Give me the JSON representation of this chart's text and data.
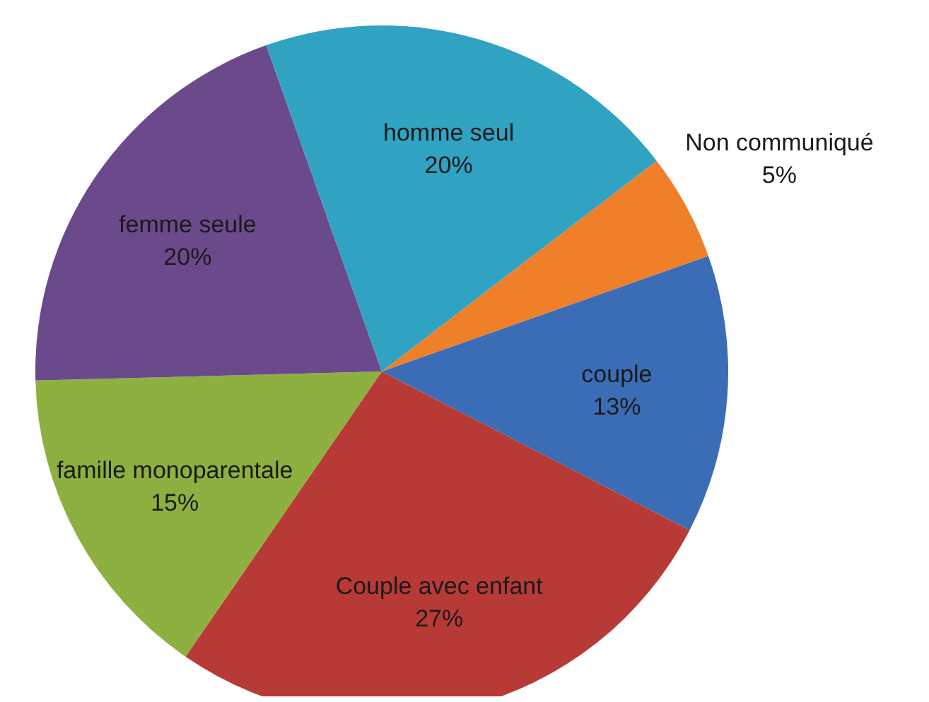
{
  "chart_data": {
    "type": "pie",
    "categories": [
      "Non communiqué",
      "couple",
      "Couple avec enfant",
      "famille monoparentale",
      "femme seule",
      "homme seul"
    ],
    "values": [
      5,
      13,
      27,
      15,
      20,
      20
    ],
    "colors": [
      "#f07f2a",
      "#3a6db5",
      "#b83a36",
      "#8db040",
      "#6b4a8c",
      "#31a3c2"
    ],
    "value_labels": [
      "5%",
      "13%",
      "27%",
      "15%",
      "20%",
      "20%"
    ],
    "legend": false
  }
}
